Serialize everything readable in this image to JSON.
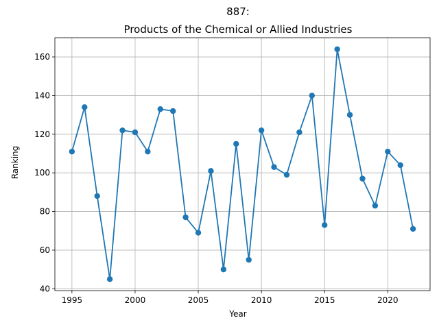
{
  "chart_data": {
    "type": "line",
    "title_line1": "887:",
    "title_line2": "Products of the Chemical or Allied Industries",
    "xlabel": "Year",
    "ylabel": "Ranking",
    "xlim": [
      1993.65,
      2023.35
    ],
    "ylim": [
      39.05,
      169.95
    ],
    "xticks": [
      1995,
      2000,
      2005,
      2010,
      2015,
      2020
    ],
    "yticks": [
      40,
      60,
      80,
      100,
      120,
      140,
      160
    ],
    "grid": true,
    "series": [
      {
        "color": "#1f77b4",
        "marker": "circle",
        "x": [
          1995,
          1996,
          1997,
          1998,
          1999,
          2000,
          2001,
          2002,
          2003,
          2004,
          2005,
          2006,
          2007,
          2008,
          2009,
          2010,
          2011,
          2012,
          2013,
          2014,
          2015,
          2016,
          2017,
          2018,
          2019,
          2020,
          2021,
          2022
        ],
        "y": [
          111,
          134,
          88,
          45,
          122,
          121,
          111,
          133,
          132,
          77,
          69,
          101,
          50,
          115,
          55,
          122,
          103,
          99,
          121,
          140,
          73,
          164,
          130,
          97,
          83,
          111,
          104,
          71
        ]
      }
    ]
  }
}
